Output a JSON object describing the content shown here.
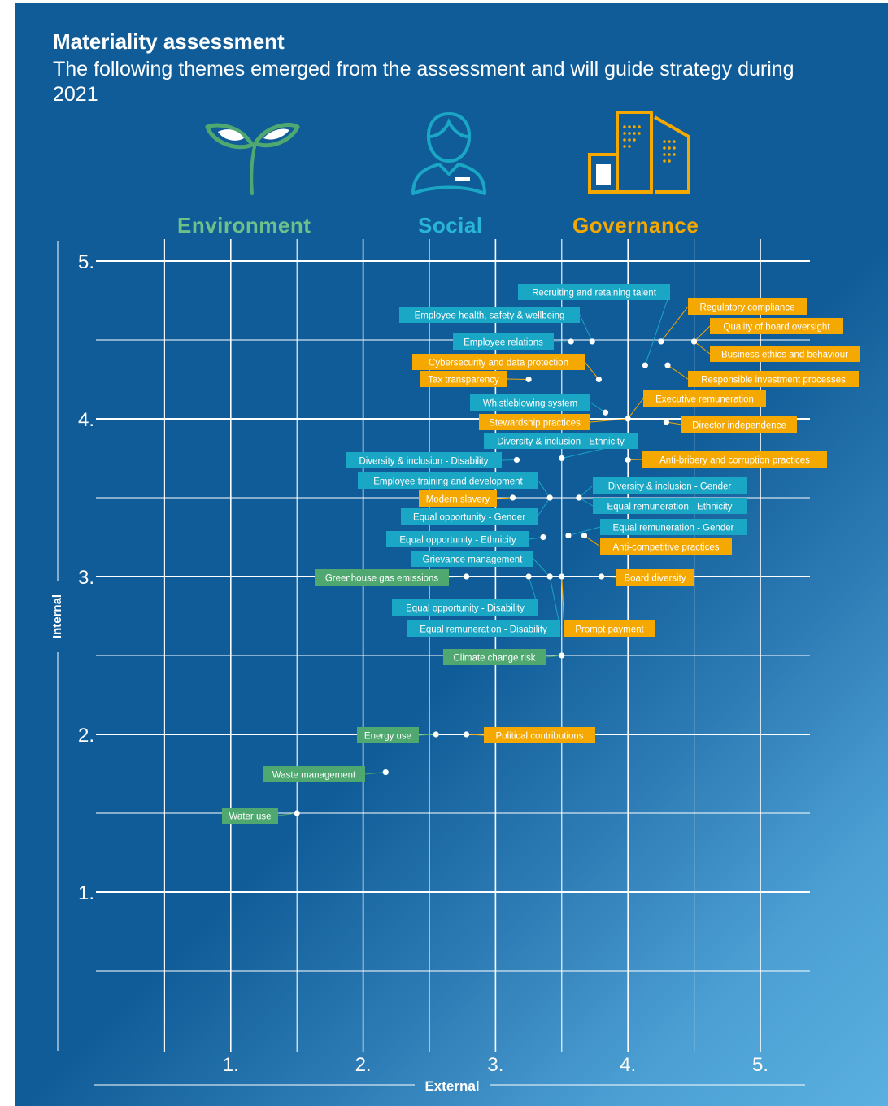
{
  "colors": {
    "background": "#0f5c98",
    "environment": "#4fa86f",
    "social": "#1aa6c5",
    "governance": "#f5a800",
    "grid": "#ffffff"
  },
  "header": {
    "title": "Materiality assessment",
    "subtitle": "The following themes emerged from the assessment and will guide strategy during 2021"
  },
  "categories": [
    {
      "name": "Environment",
      "icon": "sprout-icon",
      "color": "#6fc18a"
    },
    {
      "name": "Social",
      "icon": "person-icon",
      "color": "#29b6d6"
    },
    {
      "name": "Governance",
      "icon": "buildings-icon",
      "color": "#f5a800"
    }
  ],
  "chart_data": {
    "type": "scatter",
    "xlabel": "External",
    "ylabel": "Internal",
    "xlim": [
      0,
      5
    ],
    "ylim": [
      0,
      5
    ],
    "xticks": [
      "1.",
      "2.",
      "3.",
      "4.",
      "5."
    ],
    "yticks": [
      "1.",
      "2.",
      "3.",
      "4.",
      "5."
    ],
    "grid": true,
    "points": [
      {
        "label": "Recruiting and retaining talent",
        "category": "Social",
        "x": 4.13,
        "y": 4.34
      },
      {
        "label": "Employee health, safety & wellbeing",
        "category": "Social",
        "x": 3.73,
        "y": 4.49
      },
      {
        "label": "Employee relations",
        "category": "Social",
        "x": 3.57,
        "y": 4.49
      },
      {
        "label": "Regulatory compliance",
        "category": "Governance",
        "x": 4.25,
        "y": 4.49
      },
      {
        "label": "Quality of board oversight",
        "category": "Governance",
        "x": 4.5,
        "y": 4.49
      },
      {
        "label": "Business ethics and behaviour",
        "category": "Governance",
        "x": 4.5,
        "y": 4.49
      },
      {
        "label": "Cybersecurity and data protection",
        "category": "Governance",
        "x": 3.78,
        "y": 4.25
      },
      {
        "label": "Tax transparency",
        "category": "Governance",
        "x": 3.25,
        "y": 4.25
      },
      {
        "label": "Responsible investment processes",
        "category": "Governance",
        "x": 4.3,
        "y": 4.34
      },
      {
        "label": "Whistleblowing system",
        "category": "Social",
        "x": 3.83,
        "y": 4.04
      },
      {
        "label": "Stewardship practices",
        "category": "Governance",
        "x": 4.0,
        "y": 4.0
      },
      {
        "label": "Executive remuneration",
        "category": "Governance",
        "x": 4.0,
        "y": 4.0
      },
      {
        "label": "Director independence",
        "category": "Governance",
        "x": 4.29,
        "y": 3.98
      },
      {
        "label": "Diversity & inclusion - Ethnicity",
        "category": "Social",
        "x": 3.5,
        "y": 3.75
      },
      {
        "label": "Diversity & inclusion - Disability",
        "category": "Social",
        "x": 3.16,
        "y": 3.74
      },
      {
        "label": "Anti-bribery and corruption practices",
        "category": "Governance",
        "x": 4.0,
        "y": 3.74
      },
      {
        "label": "Employee training and development",
        "category": "Social",
        "x": 3.41,
        "y": 3.5
      },
      {
        "label": "Modern slavery",
        "category": "Governance",
        "x": 3.13,
        "y": 3.5
      },
      {
        "label": "Equal opportunity - Gender",
        "category": "Social",
        "x": 3.41,
        "y": 3.5
      },
      {
        "label": "Diversity & inclusion - Gender",
        "category": "Social",
        "x": 3.63,
        "y": 3.5
      },
      {
        "label": "Equal remuneration - Ethnicity",
        "category": "Social",
        "x": 3.63,
        "y": 3.5
      },
      {
        "label": "Equal opportunity - Ethnicity",
        "category": "Social",
        "x": 3.36,
        "y": 3.25
      },
      {
        "label": "Equal remuneration - Gender",
        "category": "Social",
        "x": 3.55,
        "y": 3.26
      },
      {
        "label": "Anti-competitive practices",
        "category": "Governance",
        "x": 3.67,
        "y": 3.26
      },
      {
        "label": "Grievance management",
        "category": "Social",
        "x": 3.41,
        "y": 3.0
      },
      {
        "label": "Greenhouse gas emissions",
        "category": "Environment",
        "x": 2.78,
        "y": 3.0
      },
      {
        "label": "Board diversity",
        "category": "Governance",
        "x": 3.8,
        "y": 3.0
      },
      {
        "label": "Equal opportunity - Disability",
        "category": "Social",
        "x": 3.25,
        "y": 3.0
      },
      {
        "label": "Equal remuneration - Disability",
        "category": "Social",
        "x": 3.41,
        "y": 3.0
      },
      {
        "label": "Prompt payment",
        "category": "Governance",
        "x": 3.5,
        "y": 3.0
      },
      {
        "label": "Climate change risk",
        "category": "Environment",
        "x": 3.5,
        "y": 2.5
      },
      {
        "label": "Energy use",
        "category": "Environment",
        "x": 2.55,
        "y": 2.0
      },
      {
        "label": "Political contributions",
        "category": "Governance",
        "x": 2.78,
        "y": 2.0
      },
      {
        "label": "Waste management",
        "category": "Environment",
        "x": 2.17,
        "y": 1.76
      },
      {
        "label": "Water use",
        "category": "Environment",
        "x": 1.5,
        "y": 1.5
      }
    ]
  }
}
